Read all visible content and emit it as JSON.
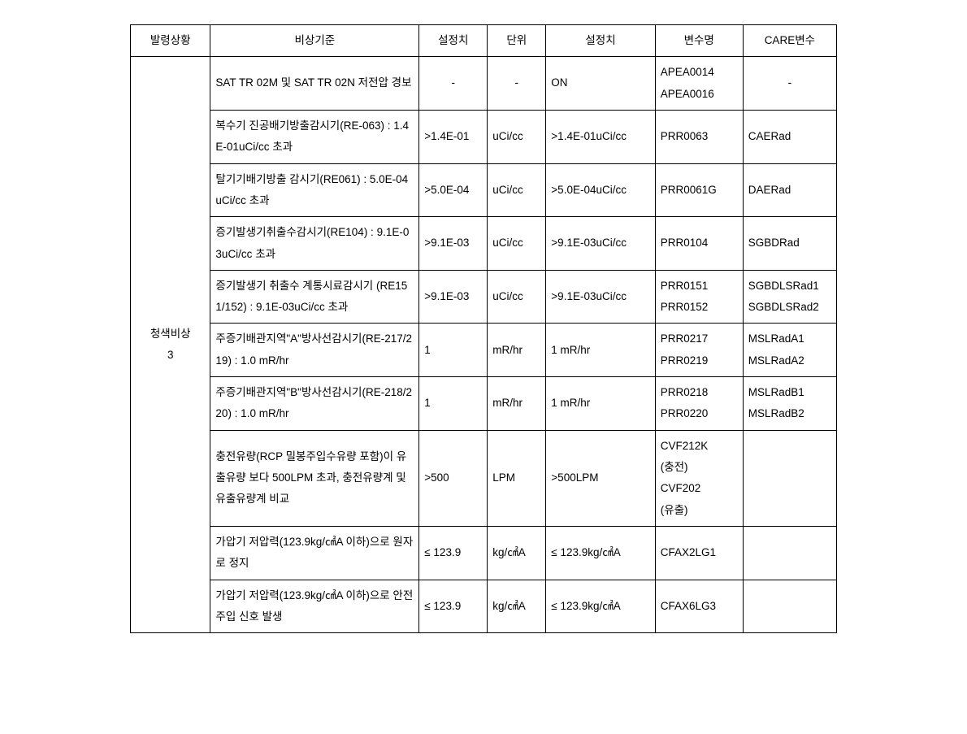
{
  "columns": [
    "발령상황",
    "비상기준",
    "설정치",
    "단위",
    "설정치",
    "변수명",
    "CARE변수"
  ],
  "statusLabel": "청색비상\n3",
  "rows": [
    {
      "criteria": "SAT TR 02M 및 SAT TR 02N 저전압 경보",
      "set1": "-",
      "unit": "-",
      "set2": "ON",
      "var": "APEA0014\nAPEA0016",
      "care": "-",
      "set1_center": true,
      "unit_center": true,
      "care_center": true
    },
    {
      "criteria": "복수기 진공배기방출감시기(RE-063) : 1.4E-01uCi/cc 초과",
      "set1": ">1.4E-01",
      "unit": "uCi/cc",
      "set2": ">1.4E-01uCi/cc",
      "var": "PRR0063",
      "care": "CAERad"
    },
    {
      "criteria": "탈기기배기방출 감시기(RE061) : 5.0E-04uCi/cc 초과",
      "set1": ">5.0E-04",
      "unit": "uCi/cc",
      "set2": ">5.0E-04uCi/cc",
      "var": "PRR0061G",
      "care": "DAERad"
    },
    {
      "criteria": "증기발생기취출수감시기(RE104) : 9.1E-03uCi/cc 초과",
      "set1": ">9.1E-03",
      "unit": "uCi/cc",
      "set2": ">9.1E-03uCi/cc",
      "var": "PRR0104",
      "care": "SGBDRad"
    },
    {
      "criteria": "증기발생기 취출수 계통시료감시기 (RE151/152) : 9.1E-03uCi/cc 초과",
      "set1": ">9.1E-03",
      "unit": "uCi/cc",
      "set2": ">9.1E-03uCi/cc",
      "var": "PRR0151\nPRR0152",
      "care": "SGBDLSRad1\nSGBDLSRad2"
    },
    {
      "criteria": "주증기배관지역\"A\"방사선감시기(RE-217/219) : 1.0 mR/hr",
      "set1": "1",
      "unit": "mR/hr",
      "set2": "1 mR/hr",
      "var": "PRR0217\nPRR0219",
      "care": "MSLRadA1\nMSLRadA2"
    },
    {
      "criteria": "주증기배관지역\"B\"방사선감시기(RE-218/220) : 1.0 mR/hr",
      "set1": "1",
      "unit": "mR/hr",
      "set2": "1 mR/hr",
      "var": "PRR0218\nPRR0220",
      "care": "MSLRadB1\nMSLRadB2"
    },
    {
      "criteria": "충전유량(RCP 밀봉주입수유량 포함)이 유출유량 보다 500LPM 초과, 충전유량계 및 유출유량계 비교",
      "set1": ">500",
      "unit": "LPM",
      "set2": ">500LPM",
      "var": "CVF212K\n(충전)\nCVF202\n(유출)",
      "care": ""
    },
    {
      "criteria": "가압기 저압력(123.9kg/㎠A 이하)으로 원자로 정지",
      "set1": "≤ 123.9",
      "unit": "kg/㎠A",
      "set2": "≤ 123.9kg/㎠A",
      "var": "CFAX2LG1",
      "care": ""
    },
    {
      "criteria": "가압기 저압력(123.9kg/㎠A 이하)으로 안전주입 신호 발생",
      "set1": "≤ 123.9",
      "unit": "kg/㎠A",
      "set2": "≤ 123.9kg/㎠A",
      "var": "CFAX6LG3",
      "care": ""
    }
  ]
}
